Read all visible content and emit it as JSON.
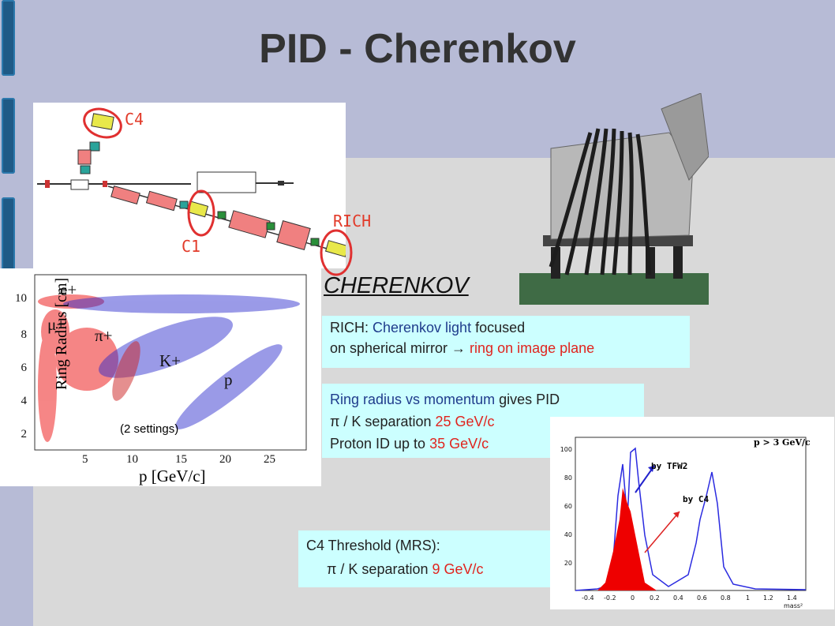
{
  "slide": {
    "title": "PID - Cherenkov"
  },
  "diagram": {
    "label_c4": "C4",
    "label_c1": "C1",
    "label_rich": "RICH"
  },
  "cherenkov_heading": "CHERENKOV",
  "rich_box": {
    "line1_prefix": "RICH: ",
    "line1_blue": "Cherenkov light",
    "line1_suffix": " focused",
    "line2_prefix": "on spherical mirror ",
    "arrow": "→",
    "line2_red": " ring on image plane"
  },
  "pid_box": {
    "line1_blue": "Ring radius vs momentum",
    "line1_suffix": " gives PID",
    "line2_prefix": "π / K separation ",
    "line2_red": "25 GeV/c",
    "line3_prefix": "Proton ID up to  ",
    "line3_red": "35 GeV/c"
  },
  "c4_box": {
    "line1": "C4 Threshold (MRS):",
    "line2_prefix": "π / K separation ",
    "line2_red": "9 GeV/c"
  },
  "ring_plot": {
    "ylabel": "Ring Radius [cm]",
    "xlabel": "p [GeV/c]",
    "yticks": [
      "10",
      "8",
      "6",
      "4",
      "2"
    ],
    "xticks": [
      "5",
      "10",
      "15",
      "20",
      "25"
    ],
    "particles": [
      "e+",
      "μ+",
      "π+",
      "K+",
      "p"
    ],
    "note": "(2 settings)"
  },
  "mass_plot": {
    "title": "p > 3 GeV/c",
    "label_tfw2": "by TFW2",
    "label_c4": "by C4",
    "xlabel": "mass²",
    "yticks": [
      "100",
      "80",
      "60",
      "40",
      "20"
    ],
    "xticks": [
      "-0.4",
      "-0.2",
      "0",
      "0.2",
      "0.4",
      "0.6",
      "0.8",
      "1",
      "1.2",
      "1.4"
    ]
  },
  "colors": {
    "header": "#b7bbd6",
    "tab": "#1f5a86",
    "box": "#ccffff",
    "accent_red": "#e0241e",
    "accent_blue": "#1f3c8c"
  }
}
